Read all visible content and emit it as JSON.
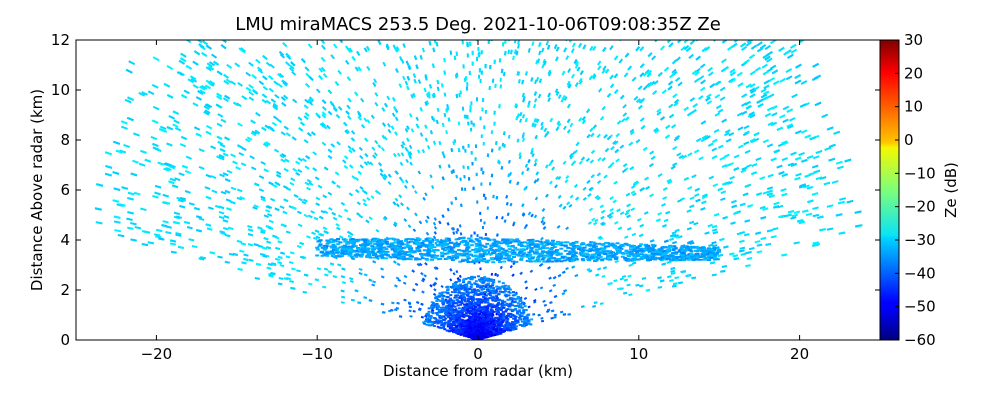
{
  "chart_data": {
    "type": "scatter",
    "subtype": "radar_rhi_reflectivity",
    "title": "LMU miraMACS 253.5 Deg. 2021-10-06T09:08:35Z  Ze",
    "xlabel": "Distance from radar (km)",
    "ylabel": "Distance Above radar  (km)",
    "xlim": [
      -25,
      25
    ],
    "ylim": [
      0,
      12
    ],
    "xticks": [
      -20,
      -10,
      0,
      10,
      20
    ],
    "xtick_labels": [
      "−20",
      "−10",
      "0",
      "10",
      "20"
    ],
    "yticks": [
      0,
      2,
      4,
      6,
      8,
      10,
      12
    ],
    "ytick_labels": [
      "0",
      "2",
      "4",
      "6",
      "8",
      "10",
      "12"
    ],
    "colorbar": {
      "label": "Ze (dB)",
      "range": [
        -60,
        30
      ],
      "ticks": [
        -60,
        -50,
        -40,
        -30,
        -20,
        -10,
        0,
        10,
        20,
        30
      ],
      "tick_labels": [
        "−60",
        "−50",
        "−40",
        "−30",
        "−20",
        "−10",
        "0",
        "10",
        "20",
        "30"
      ],
      "colormap": "jet"
    },
    "scan": {
      "elevation_range_deg": [
        10,
        170
      ],
      "max_range_km": 24.5,
      "features": [
        {
          "name": "background noise",
          "ze_dB": -30
        },
        {
          "name": "cloud layer",
          "height_km": 3.6,
          "x_extent_km": [
            -10,
            15
          ],
          "ze_dB": -32
        },
        {
          "name": "near-radar echoes",
          "height_km": [
            0,
            2
          ],
          "ze_dB": -50
        }
      ]
    },
    "grid": false,
    "legend": "none"
  }
}
